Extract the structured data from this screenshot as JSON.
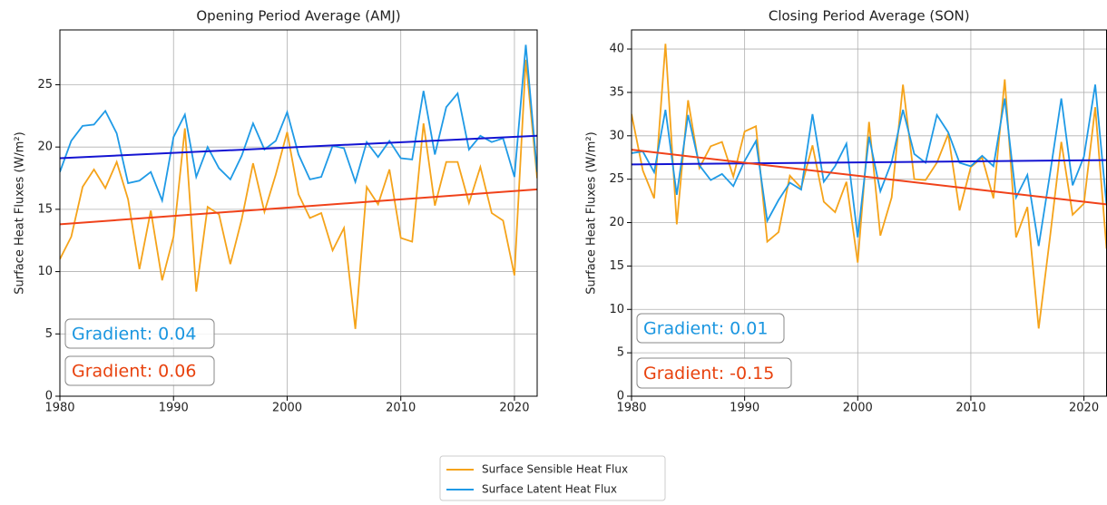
{
  "chart_data": [
    {
      "type": "line",
      "title": "Opening Period Average (AMJ)",
      "ylabel": "Surface Heat Fluxes (W/m²)",
      "x": [
        1980,
        1981,
        1982,
        1983,
        1984,
        1985,
        1986,
        1987,
        1988,
        1989,
        1990,
        1991,
        1992,
        1993,
        1994,
        1995,
        1996,
        1997,
        1998,
        1999,
        2000,
        2001,
        2002,
        2003,
        2004,
        2005,
        2006,
        2007,
        2008,
        2009,
        2010,
        2011,
        2012,
        2013,
        2014,
        2015,
        2016,
        2017,
        2018,
        2019,
        2020,
        2021,
        2022
      ],
      "xlim": [
        1980,
        2022
      ],
      "ylim": [
        0,
        29.4
      ],
      "xticks": [
        1980,
        1990,
        2000,
        2010,
        2020
      ],
      "yticks": [
        0,
        5,
        10,
        15,
        20,
        25
      ],
      "grid": true,
      "series": [
        {
          "name": "Surface Sensible Heat Flux",
          "color": "#f5a31a",
          "values": [
            11,
            12.8,
            16.8,
            18.2,
            16.7,
            18.8,
            15.8,
            10.2,
            14.9,
            9.3,
            12.8,
            21.5,
            8.4,
            15.2,
            14.6,
            10.6,
            14.2,
            18.7,
            14.8,
            17.8,
            21.2,
            16.2,
            14.3,
            14.7,
            11.7,
            13.5,
            5.4,
            16.8,
            15.4,
            18.2,
            12.7,
            12.4,
            21.9,
            15.3,
            18.8,
            18.8,
            15.5,
            18.4,
            14.7,
            14.1,
            9.7,
            27,
            17.5
          ]
        },
        {
          "name": "Surface Latent Heat Flux",
          "color": "#1f9ae6",
          "values": [
            18,
            20.5,
            21.7,
            21.8,
            22.9,
            21.1,
            17.1,
            17.3,
            18,
            15.7,
            20.8,
            22.6,
            17.6,
            20,
            18.3,
            17.4,
            19.3,
            21.9,
            19.8,
            20.5,
            22.8,
            19.4,
            17.4,
            17.6,
            20.1,
            19.9,
            17.2,
            20.4,
            19.2,
            20.5,
            19.1,
            19,
            24.5,
            19.4,
            23.2,
            24.3,
            19.8,
            20.9,
            20.4,
            20.7,
            17.6,
            28.2,
            18
          ]
        }
      ],
      "trend_lines": [
        {
          "color": "#1414d2",
          "x": [
            1980,
            2022
          ],
          "values": [
            19.1,
            20.9
          ]
        },
        {
          "color": "#f0421a",
          "x": [
            1980,
            2022
          ],
          "values": [
            13.8,
            16.6
          ]
        }
      ],
      "annotations": [
        {
          "text": "Gradient: 0.04",
          "color": "#1a96e0"
        },
        {
          "text": "Gradient: 0.06",
          "color": "#e8420e"
        }
      ]
    },
    {
      "type": "line",
      "title": "Closing Period Average (SON)",
      "ylabel": "Surface Heat Fluxes (W/m²)",
      "x": [
        1980,
        1981,
        1982,
        1983,
        1984,
        1985,
        1986,
        1987,
        1988,
        1989,
        1990,
        1991,
        1992,
        1993,
        1994,
        1995,
        1996,
        1997,
        1998,
        1999,
        2000,
        2001,
        2002,
        2003,
        2004,
        2005,
        2006,
        2007,
        2008,
        2009,
        2010,
        2011,
        2012,
        2013,
        2014,
        2015,
        2016,
        2017,
        2018,
        2019,
        2020,
        2021,
        2022
      ],
      "xlim": [
        1980,
        2022
      ],
      "ylim": [
        0,
        42.2
      ],
      "xticks": [
        1980,
        1990,
        2000,
        2010,
        2020
      ],
      "yticks": [
        0,
        5,
        10,
        15,
        20,
        25,
        30,
        35,
        40
      ],
      "grid": true,
      "series": [
        {
          "name": "Surface Sensible Heat Flux",
          "color": "#f5a31a",
          "values": [
            32.5,
            26,
            22.8,
            40.6,
            19.8,
            34.1,
            26.3,
            28.8,
            29.3,
            25.3,
            30.5,
            31.1,
            17.8,
            18.9,
            25.4,
            24,
            28.9,
            22.4,
            21.2,
            24.7,
            15.4,
            31.6,
            18.5,
            22.9,
            35.9,
            25,
            24.9,
            26.9,
            30.2,
            21.4,
            26.4,
            27.5,
            22.8,
            36.5,
            18.3,
            21.8,
            7.8,
            18.3,
            29.3,
            20.9,
            22.2,
            33.3,
            17
          ]
        },
        {
          "name": "Surface Latent Heat Flux",
          "color": "#1f9ae6",
          "values": [
            28,
            28.2,
            25.8,
            33,
            23.2,
            32.4,
            26.6,
            24.9,
            25.6,
            24.2,
            27.1,
            29.4,
            20.2,
            22.6,
            24.6,
            23.8,
            32.5,
            24.7,
            26.5,
            29.1,
            18.3,
            29.9,
            23.6,
            27,
            33,
            27.9,
            26.9,
            32.4,
            30.4,
            26.9,
            26.5,
            27.7,
            26.5,
            34.3,
            22.9,
            25.5,
            17.3,
            25.6,
            34.3,
            24.3,
            27.6,
            35.9,
            22
          ]
        }
      ],
      "trend_lines": [
        {
          "color": "#1414d2",
          "x": [
            1980,
            2022
          ],
          "values": [
            26.7,
            27.2
          ]
        },
        {
          "color": "#f0421a",
          "x": [
            1980,
            2022
          ],
          "values": [
            28.4,
            22.1
          ]
        }
      ],
      "annotations": [
        {
          "text": "Gradient: 0.01",
          "color": "#1a96e0"
        },
        {
          "text": "Gradient: -0.15",
          "color": "#e8420e"
        }
      ]
    }
  ]
}
